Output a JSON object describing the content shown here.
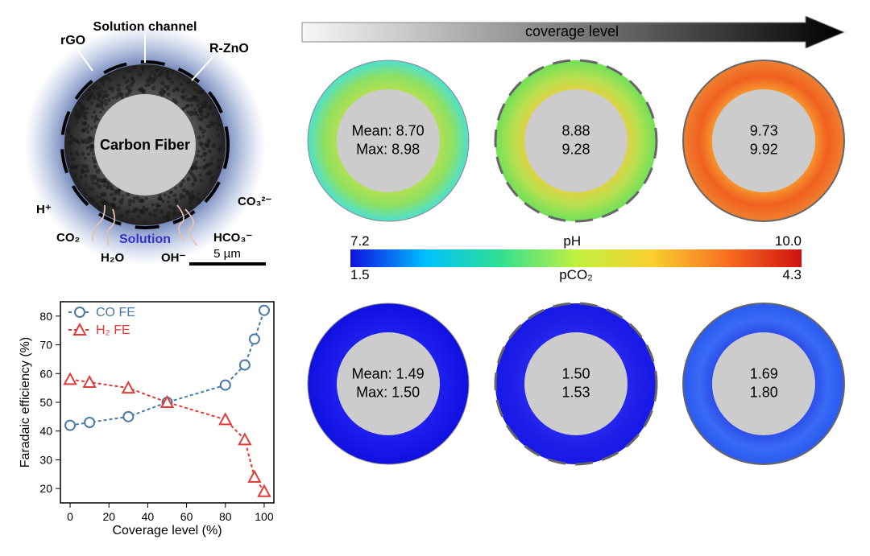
{
  "schematic": {
    "labels": {
      "rgo": "rGO",
      "solution_channel": "Solution channel",
      "rzno": "R-ZnO",
      "carbon_fiber": "Carbon Fiber",
      "h_plus": "H⁺",
      "co2": "CO₂",
      "h2o": "H₂O",
      "oh_minus": "OH⁻",
      "hco3": "HCO₃⁻",
      "co3": "CO₃²⁻",
      "solution": "Solution",
      "scale": "5 µm"
    },
    "colors": {
      "halo_outer": "#6b8cc9",
      "halo_inner": "#1e3a8a",
      "fiber_core": "#cccccc",
      "annulus": "#3a3a3a",
      "text": "#000000",
      "solution_text": "#3333cc"
    }
  },
  "chart": {
    "title": "",
    "xlabel": "Coverage level (%)",
    "ylabel": "Faradaic efficiency (%)",
    "xlim": [
      -5,
      105
    ],
    "ylim": [
      15,
      85
    ],
    "xticks": [
      0,
      20,
      40,
      60,
      80,
      100
    ],
    "yticks": [
      20,
      30,
      40,
      50,
      60,
      70,
      80
    ],
    "background_color": "#ffffff",
    "axis_color": "#000000",
    "series": [
      {
        "name": "CO FE",
        "legend": "CO FE",
        "marker": "circle",
        "color": "#4a7aa8",
        "line_dash": "4,3",
        "x": [
          0,
          10,
          30,
          50,
          80,
          90,
          95,
          100
        ],
        "y": [
          42,
          43,
          45,
          50,
          56,
          63,
          72,
          82
        ]
      },
      {
        "name": "H2 FE",
        "legend": "H₂ FE",
        "marker": "triangle",
        "color": "#e33a3a",
        "line_dash": "4,3",
        "x": [
          0,
          10,
          30,
          50,
          80,
          90,
          95,
          100
        ],
        "y": [
          58,
          57,
          55,
          50,
          44,
          37,
          24,
          19
        ]
      }
    ],
    "label_fontsize": 16,
    "tick_fontsize": 14
  },
  "coverage_arrow": {
    "label": "coverage level",
    "gradient_start": "#f8f8f8",
    "gradient_end": "#000000",
    "text_color": "#000000",
    "fontsize": 18
  },
  "ph_rings": [
    {
      "mean_label": "Mean: 8.70",
      "max_label": "Max: 8.98",
      "ring_gradient": [
        "#4de0d0",
        "#8fe060",
        "#b8e050"
      ],
      "border_dash": "open",
      "core": "#cccccc"
    },
    {
      "mean_label": "8.88",
      "max_label": "9.28",
      "ring_gradient": [
        "#6fe058",
        "#b4e050",
        "#e8d040"
      ],
      "border_dash": "partial",
      "core": "#cccccc"
    },
    {
      "mean_label": "9.73",
      "max_label": "9.92",
      "ring_gradient": [
        "#f08030",
        "#f06020",
        "#f8a030"
      ],
      "border_dash": "closed",
      "core": "#cccccc"
    }
  ],
  "pco2_rings": [
    {
      "mean_label": "Mean: 1.49",
      "max_label": "Max: 1.50",
      "ring_gradient": [
        "#1010e0",
        "#1818e8",
        "#2020f0"
      ],
      "border_dash": "open",
      "core": "#cccccc"
    },
    {
      "mean_label": "1.50",
      "max_label": "1.53",
      "ring_gradient": [
        "#1818e8",
        "#1e1ee8",
        "#2828f0"
      ],
      "border_dash": "partial",
      "core": "#cccccc"
    },
    {
      "mean_label": "1.69",
      "max_label": "1.80",
      "ring_gradient": [
        "#2a5af0",
        "#3a6af5",
        "#2848e8"
      ],
      "border_dash": "closed",
      "core": "#cccccc"
    }
  ],
  "colorbar": {
    "ph_label": "pH",
    "pco2_label": "pCO₂",
    "ph_min": "7.2",
    "ph_max": "10.0",
    "pco2_min": "1.5",
    "pco2_max": "4.3",
    "stops": [
      "#1010e0",
      "#00c0ff",
      "#30e090",
      "#c0f040",
      "#f8d030",
      "#f87020",
      "#d01010"
    ],
    "fontsize": 17
  },
  "ring_style": {
    "outer_r": 100,
    "inner_r": 64,
    "text_fontsize": 18,
    "text_color": "#000000",
    "border_color": "#666666",
    "border_width": 2
  }
}
